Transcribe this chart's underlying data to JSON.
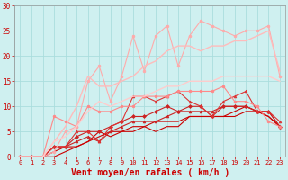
{
  "title": "",
  "xlabel": "Vent moyen/en rafales ( km/h )",
  "ylabel": "",
  "bg_color": "#cff0f0",
  "grid_color": "#aadddd",
  "x": [
    0,
    1,
    2,
    3,
    4,
    5,
    6,
    7,
    8,
    9,
    10,
    11,
    12,
    13,
    14,
    15,
    16,
    17,
    18,
    19,
    20,
    21,
    22,
    23
  ],
  "lines": [
    {
      "y": [
        0,
        0,
        0,
        0,
        1,
        2,
        3,
        5,
        4,
        5,
        5,
        6,
        5,
        6,
        6,
        8,
        8,
        8,
        8,
        8,
        9,
        9,
        8,
        6
      ],
      "color": "#cc0000",
      "lw": 0.8,
      "marker": null,
      "alpha": 1.0
    },
    {
      "y": [
        0,
        0,
        0,
        1,
        2,
        2,
        3,
        4,
        5,
        5,
        6,
        6,
        7,
        7,
        7,
        8,
        8,
        8,
        8,
        9,
        10,
        9,
        8,
        6
      ],
      "color": "#cc0000",
      "lw": 0.8,
      "marker": null,
      "alpha": 1.0
    },
    {
      "y": [
        0,
        0,
        0,
        2,
        2,
        3,
        4,
        3,
        5,
        6,
        7,
        7,
        7,
        8,
        9,
        9,
        9,
        9,
        10,
        10,
        10,
        9,
        9,
        6
      ],
      "color": "#cc2222",
      "lw": 0.8,
      "marker": "^",
      "ms": 2,
      "alpha": 1.0
    },
    {
      "y": [
        0,
        0,
        0,
        2,
        2,
        4,
        5,
        5,
        6,
        7,
        8,
        8,
        9,
        10,
        9,
        10,
        10,
        8,
        10,
        10,
        10,
        9,
        9,
        6
      ],
      "color": "#cc2222",
      "lw": 0.8,
      "marker": "D",
      "ms": 2,
      "alpha": 1.0
    },
    {
      "y": [
        0,
        0,
        0,
        2,
        2,
        5,
        5,
        3,
        6,
        7,
        12,
        12,
        11,
        12,
        13,
        11,
        10,
        8,
        11,
        12,
        13,
        9,
        9,
        7
      ],
      "color": "#dd3333",
      "lw": 0.8,
      "marker": "^",
      "ms": 2,
      "alpha": 1.0
    },
    {
      "y": [
        0,
        0,
        0,
        8,
        7,
        6,
        10,
        9,
        9,
        10,
        10,
        12,
        12,
        12,
        13,
        13,
        13,
        13,
        14,
        11,
        11,
        10,
        7,
        6
      ],
      "color": "#ff8888",
      "lw": 0.8,
      "marker": "o",
      "ms": 2,
      "alpha": 1.0
    },
    {
      "y": [
        0,
        0,
        0,
        1,
        5,
        6,
        15,
        18,
        11,
        16,
        24,
        17,
        24,
        26,
        18,
        24,
        27,
        26,
        25,
        24,
        25,
        25,
        26,
        16
      ],
      "color": "#ffaaaa",
      "lw": 0.8,
      "marker": "o",
      "ms": 2,
      "alpha": 1.0
    },
    {
      "y": [
        0,
        0,
        0,
        3,
        6,
        10,
        16,
        14,
        14,
        15,
        16,
        18,
        19,
        21,
        22,
        22,
        21,
        22,
        22,
        23,
        23,
        24,
        25,
        17
      ],
      "color": "#ffbbbb",
      "lw": 1.0,
      "marker": null,
      "alpha": 1.0
    },
    {
      "y": [
        0,
        0,
        0,
        3,
        4,
        6,
        9,
        11,
        10,
        11,
        12,
        12,
        13,
        14,
        14,
        15,
        15,
        15,
        16,
        16,
        16,
        16,
        16,
        15
      ],
      "color": "#ffcccc",
      "lw": 1.0,
      "marker": null,
      "alpha": 1.0
    }
  ],
  "xlim": [
    -0.5,
    23.5
  ],
  "ylim": [
    0,
    30
  ],
  "yticks": [
    0,
    5,
    10,
    15,
    20,
    25,
    30
  ],
  "xticks": [
    0,
    1,
    2,
    3,
    4,
    5,
    6,
    7,
    8,
    9,
    10,
    11,
    12,
    13,
    14,
    15,
    16,
    17,
    18,
    19,
    20,
    21,
    22,
    23
  ],
  "xlabel_color": "#cc0000",
  "tick_color": "#cc0000",
  "xlabel_fontsize": 7,
  "xtick_fontsize": 5,
  "ytick_fontsize": 5.5
}
